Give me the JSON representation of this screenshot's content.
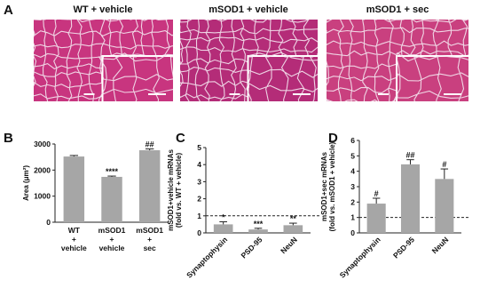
{
  "panel_labels": [
    "A",
    "B",
    "C",
    "D"
  ],
  "images": [
    {
      "title": "WT + vehicle"
    },
    {
      "title": "mSOD1 + vehicle"
    },
    {
      "title": "mSOD1 + sec"
    }
  ],
  "chart_data": [
    {
      "type": "bar",
      "ylabel": "Area (μm²)",
      "categories": [
        [
          "WT",
          "+",
          "vehicle"
        ],
        [
          "mSOD1",
          "+",
          "vehicle"
        ],
        [
          "mSOD1",
          "+",
          "sec"
        ]
      ],
      "values": [
        2520,
        1740,
        2760
      ],
      "errors": [
        40,
        30,
        50
      ],
      "annotations": [
        null,
        "****",
        "##"
      ],
      "color": "#a6a6a6",
      "ylim": [
        0,
        3000
      ],
      "yticks": [
        0,
        1000,
        2000,
        3000
      ]
    },
    {
      "type": "bar",
      "ylabel": [
        "mSOD1+vehicle mRNAs",
        "(fold vs. WT + vehicle)"
      ],
      "categories": [
        "Synaptophysin",
        "PSD-95",
        "NeuN"
      ],
      "values": [
        0.5,
        0.2,
        0.45
      ],
      "errors": [
        0.15,
        0.07,
        0.12
      ],
      "annotations": [
        "*",
        "***",
        "**"
      ],
      "hline": 1,
      "xtick_rotation": 45,
      "color": "#a6a6a6",
      "ylim": [
        0,
        5
      ],
      "yticks": [
        0,
        1,
        2,
        3,
        4,
        5
      ]
    },
    {
      "type": "bar",
      "ylabel": [
        "mSOD1+sec mRNAs",
        "(fold vs. mSOD1 + vehicle)"
      ],
      "categories": [
        "Synaptophysin",
        "PSD-95",
        "NeuN"
      ],
      "values": [
        1.9,
        4.45,
        3.5
      ],
      "errors": [
        0.35,
        0.3,
        0.65
      ],
      "annotations": [
        "#",
        "##",
        "#"
      ],
      "hline": 1,
      "xtick_rotation": 45,
      "color": "#a6a6a6",
      "ylim": [
        0,
        6
      ],
      "yticks": [
        0,
        1,
        2,
        3,
        4,
        5,
        6
      ]
    }
  ]
}
